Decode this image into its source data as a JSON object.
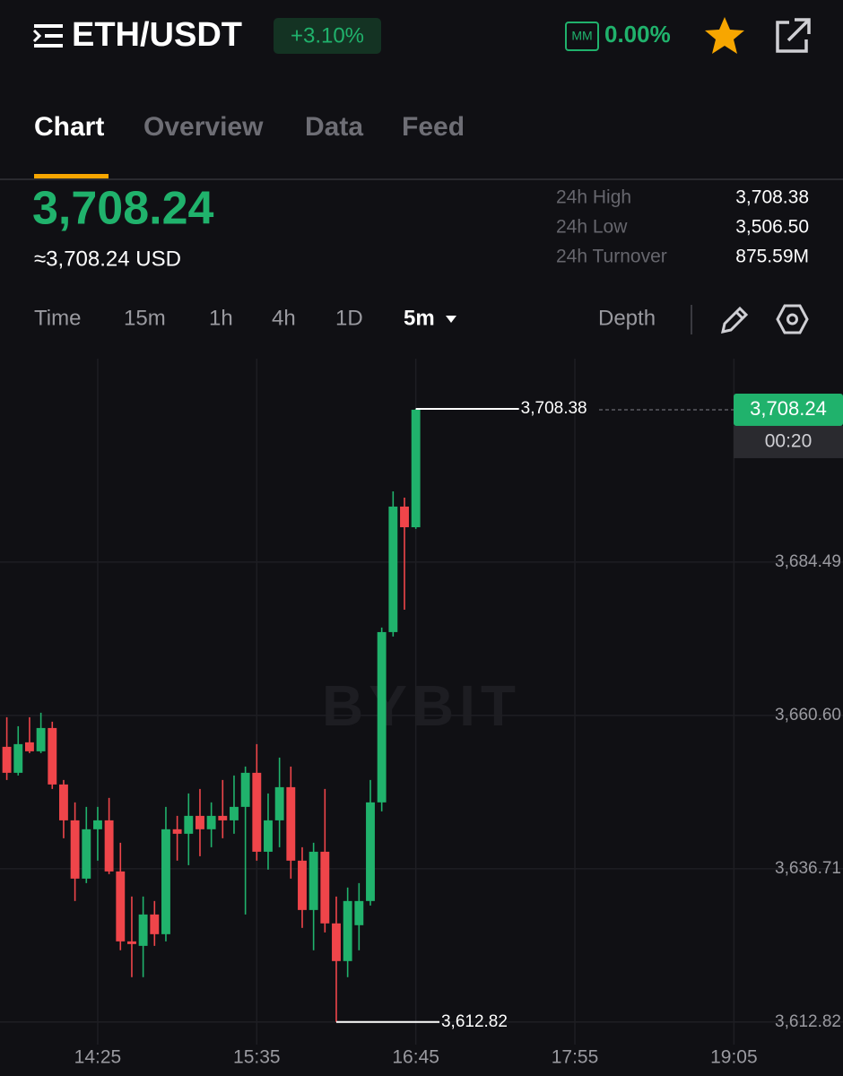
{
  "header": {
    "pair": "ETH/USDT",
    "change": "+3.10%",
    "mm_badge": "MM",
    "mm_value": "0.00%"
  },
  "tabs": [
    "Chart",
    "Overview",
    "Data",
    "Feed"
  ],
  "ticker": {
    "price": "3,708.24",
    "price_usd": "≈3,708.24 USD",
    "stats": [
      {
        "label": "24h High",
        "value": "3,708.38"
      },
      {
        "label": "24h Low",
        "value": "3,506.50"
      },
      {
        "label": "24h Turnover",
        "value": "875.59M"
      }
    ]
  },
  "toolbar": {
    "intervals": [
      "Time",
      "15m",
      "1h",
      "4h",
      "1D"
    ],
    "selected": "5m",
    "depth": "Depth"
  },
  "chart_data": {
    "type": "candlestick",
    "x": [
      "13:45",
      "13:50",
      "13:55",
      "14:00",
      "14:05",
      "14:10",
      "14:15",
      "14:20",
      "14:25",
      "14:30",
      "14:35",
      "14:40",
      "14:45",
      "14:50",
      "14:55",
      "15:00",
      "15:05",
      "15:10",
      "15:15",
      "15:20",
      "15:25",
      "15:30",
      "15:35",
      "15:40",
      "15:45",
      "15:50",
      "15:55",
      "16:00",
      "16:05",
      "16:10",
      "16:15",
      "16:20",
      "16:25",
      "16:30",
      "16:35",
      "16:40",
      "16:45"
    ],
    "values": [
      [
        3655.71,
        3660.32,
        3650.54,
        3651.66
      ],
      [
        3651.66,
        3658.92,
        3651.24,
        3656.13
      ],
      [
        3656.41,
        3660.32,
        3654.73,
        3655.01
      ],
      [
        3655.01,
        3661.02,
        3654.73,
        3658.64
      ],
      [
        3658.64,
        3659.62,
        3649.14,
        3649.84
      ],
      [
        3649.84,
        3650.54,
        3641.46,
        3644.25
      ],
      [
        3644.25,
        3647.05,
        3631.68,
        3635.17
      ],
      [
        3635.17,
        3646.35,
        3634.47,
        3642.86
      ],
      [
        3642.86,
        3646.35,
        3637.97,
        3644.25
      ],
      [
        3644.25,
        3647.75,
        3635.87,
        3636.29
      ],
      [
        3636.29,
        3640.76,
        3624.0,
        3625.39
      ],
      [
        3625.39,
        3632.38,
        3619.81,
        3624.97
      ],
      [
        3624.69,
        3632.38,
        3619.81,
        3629.58
      ],
      [
        3629.58,
        3631.68,
        3624.69,
        3626.51
      ],
      [
        3626.51,
        3646.35,
        3625.39,
        3642.86
      ],
      [
        3642.86,
        3644.95,
        3637.97,
        3642.16
      ],
      [
        3642.16,
        3648.44,
        3637.27,
        3644.95
      ],
      [
        3644.95,
        3649.14,
        3638.66,
        3642.86
      ],
      [
        3642.86,
        3647.05,
        3640.06,
        3644.95
      ],
      [
        3644.95,
        3650.54,
        3641.46,
        3644.25
      ],
      [
        3644.25,
        3651.24,
        3642.16,
        3646.35
      ],
      [
        3646.35,
        3652.63,
        3629.58,
        3651.66
      ],
      [
        3651.66,
        3656.13,
        3637.97,
        3639.36
      ],
      [
        3639.36,
        3648.44,
        3636.57,
        3644.25
      ],
      [
        3644.25,
        3654.03,
        3640.06,
        3649.42
      ],
      [
        3649.42,
        3652.63,
        3635.17,
        3637.97
      ],
      [
        3637.97,
        3640.06,
        3627.49,
        3630.28
      ],
      [
        3630.28,
        3640.76,
        3624.0,
        3639.36
      ],
      [
        3639.36,
        3649.14,
        3626.79,
        3628.19
      ],
      [
        3628.19,
        3632.38,
        3612.82,
        3622.32
      ],
      [
        3622.32,
        3633.78,
        3619.81,
        3631.68
      ],
      [
        3627.91,
        3634.47,
        3624.0,
        3631.68
      ],
      [
        3631.68,
        3650.54,
        3630.98,
        3647.05
      ],
      [
        3647.05,
        3674.29,
        3645.65,
        3673.59
      ],
      [
        3673.59,
        3695.52,
        3672.89,
        3693.15
      ],
      [
        3693.15,
        3694.54,
        3677.08,
        3689.93
      ],
      [
        3689.93,
        3708.38,
        3689.66,
        3708.24
      ]
    ],
    "up_color": "#20b26c",
    "down_color": "#ef454a",
    "xlim": [
      "13:42",
      "19:53"
    ],
    "xticks": [
      "14:25",
      "15:35",
      "16:45",
      "17:55",
      "19:05"
    ],
    "ylim": [
      3609.3,
      3716.2
    ],
    "yticks": [
      {
        "value": 3612.82,
        "label": "3,612.82"
      },
      {
        "value": 3636.71,
        "label": "3,636.71"
      },
      {
        "value": 3660.6,
        "label": "3,660.60"
      },
      {
        "value": 3684.49,
        "label": "3,684.49"
      }
    ],
    "grid": true,
    "annotations": [
      {
        "x": "16:45",
        "value": 3708.38,
        "label": "3,708.38"
      },
      {
        "x": "16:10",
        "value": 3612.82,
        "label": "3,612.82"
      }
    ],
    "last_price": {
      "value": 3708.24,
      "label": "3,708.24"
    },
    "countdown": "00:20",
    "watermark": "BYBIT"
  }
}
